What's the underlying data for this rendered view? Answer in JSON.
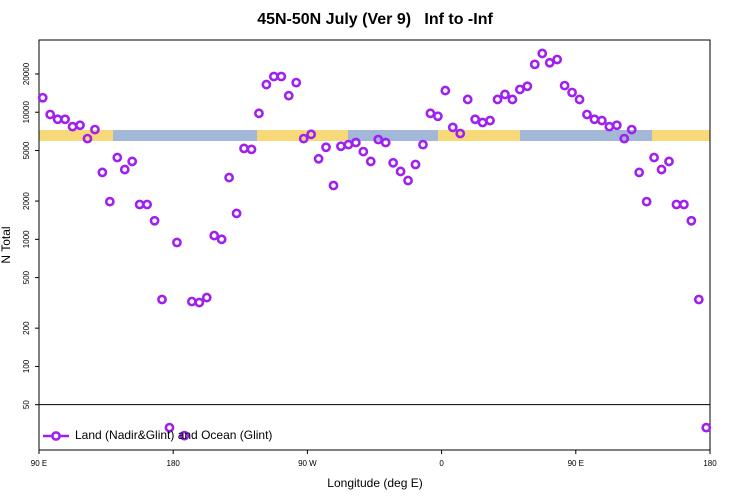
{
  "chart_data": {
    "type": "scatter",
    "title": "45N-50N July (Ver 9)   Inf to -Inf",
    "x_label": "Longitude (deg E)",
    "y_label": "N Total",
    "log_y": true,
    "legend": "lower left",
    "xlim": [
      90,
      540
    ],
    "xticks": [
      {
        "value": 90,
        "label": "90 E"
      },
      180,
      {
        "value": 270,
        "label": "90 W"
      },
      {
        "value": 360,
        "label": "0"
      },
      {
        "value": 450,
        "label": "90 E"
      },
      {
        "value": 540,
        "label": "180"
      }
    ],
    "ylim": [
      22,
      37000
    ],
    "yticks": [
      50,
      100,
      200,
      500,
      1000,
      2000,
      5000,
      10000,
      20000
    ],
    "series": [
      {
        "name": "Land (Nadir&Glint) and Ocean (Glint)",
        "color": "#a020f0",
        "x": [
          92.5,
          97.5,
          102.5,
          107.5,
          112.5,
          117.5,
          122.5,
          127.5,
          132.5,
          137.5,
          142.5,
          147.5,
          152.5,
          157.5,
          162.5,
          167.5,
          172.5,
          177.5,
          182.5,
          187.5,
          192.5,
          197.5,
          202.5,
          207.5,
          212.5,
          217.5,
          222.5,
          227.5,
          232.5,
          237.5,
          242.5,
          247.5,
          252.5,
          257.5,
          262.5,
          267.5,
          272.5,
          277.5,
          282.5,
          287.5,
          292.5,
          297.5,
          302.5,
          307.5,
          312.5,
          317.5,
          322.5,
          327.5,
          332.5,
          337.5,
          342.5,
          347.5,
          352.5,
          357.5,
          362.5,
          367.5,
          372.5,
          377.5,
          382.5,
          387.5,
          392.5,
          397.5,
          402.5,
          407.5,
          412.5,
          417.5,
          422.5,
          427.5,
          432.5,
          437.5,
          442.5,
          447.5,
          452.5,
          457.5,
          462.5,
          467.5,
          472.5,
          477.5,
          482.5,
          487.5,
          492.5,
          497.5,
          502.5,
          507.5,
          512.5,
          517.5,
          522.5,
          527.5,
          532.5,
          537.5
        ],
        "values": [
          13000,
          9600,
          8800,
          8800,
          7700,
          7900,
          6200,
          7300,
          3360,
          1980,
          4400,
          3540,
          4100,
          1880,
          1880,
          1400,
          336,
          33,
          944,
          28.5,
          324,
          318,
          348,
          1070,
          1000,
          3060,
          1600,
          5190,
          5100,
          9800,
          16500,
          19100,
          19100,
          13500,
          17100,
          6200,
          6700,
          4300,
          5300,
          2650,
          5400,
          5560,
          5780,
          4900,
          4100,
          6100,
          5780,
          4000,
          3420,
          2900,
          3880,
          5560,
          9800,
          9300,
          14800,
          7600,
          6800,
          12600,
          8800,
          8300,
          8600,
          12600,
          13800,
          12600,
          15100,
          16000,
          23800,
          29000,
          24500,
          26000,
          16200,
          14300,
          12600,
          9600,
          8800,
          8600,
          7700,
          7900,
          6200,
          7300,
          3360,
          1980,
          4400,
          3540,
          4100,
          1880,
          1880,
          1400,
          336,
          33
        ]
      }
    ]
  }
}
